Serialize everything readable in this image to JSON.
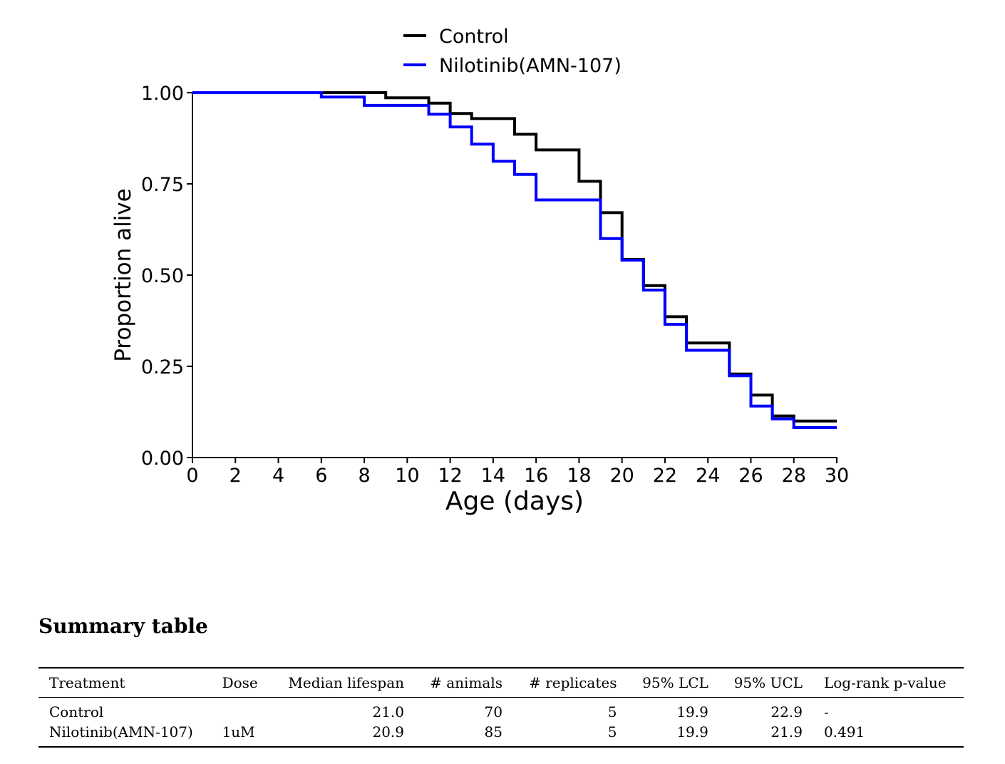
{
  "chart_data": {
    "type": "line",
    "step": "post",
    "xlabel": "Age (days)",
    "ylabel": "Proportion alive",
    "xlim": [
      0,
      30
    ],
    "ylim": [
      0,
      1
    ],
    "xticks": [
      0,
      2,
      4,
      6,
      8,
      10,
      12,
      14,
      16,
      18,
      20,
      22,
      24,
      26,
      28,
      30
    ],
    "yticks": [
      0.0,
      0.25,
      0.5,
      0.75,
      1.0
    ],
    "ytick_labels": [
      "0.00",
      "0.25",
      "0.50",
      "0.75",
      "1.00"
    ],
    "grid": false,
    "legend_position": "top-center",
    "series": [
      {
        "name": "Control",
        "color": "#000000",
        "x": [
          0,
          9,
          11,
          12,
          13,
          15,
          16,
          18,
          19,
          20,
          21,
          22,
          23,
          25,
          26,
          27,
          28,
          30
        ],
        "y": [
          1.0,
          0.986,
          0.971,
          0.943,
          0.929,
          0.886,
          0.843,
          0.757,
          0.671,
          0.543,
          0.471,
          0.386,
          0.314,
          0.229,
          0.171,
          0.114,
          0.1,
          0.1
        ]
      },
      {
        "name": "Nilotinib(AMN-107)",
        "color": "#0000ff",
        "x": [
          0,
          6,
          8,
          11,
          12,
          13,
          14,
          15,
          16,
          19,
          20,
          21,
          22,
          23,
          25,
          26,
          27,
          28,
          30
        ],
        "y": [
          1.0,
          0.988,
          0.965,
          0.941,
          0.906,
          0.859,
          0.812,
          0.776,
          0.706,
          0.6,
          0.541,
          0.459,
          0.365,
          0.294,
          0.224,
          0.141,
          0.106,
          0.082,
          0.082
        ]
      }
    ]
  },
  "summary": {
    "title": "Summary table",
    "columns": [
      "Treatment",
      "Dose",
      "Median lifespan",
      "# animals",
      "# replicates",
      "95% LCL",
      "95% UCL",
      "Log-rank p-value"
    ],
    "rows": [
      [
        "Control",
        "",
        "21.0",
        "70",
        "5",
        "19.9",
        "22.9",
        "-"
      ],
      [
        "Nilotinib(AMN-107)",
        "1uM",
        "20.9",
        "85",
        "5",
        "19.9",
        "21.9",
        "0.491"
      ]
    ]
  }
}
